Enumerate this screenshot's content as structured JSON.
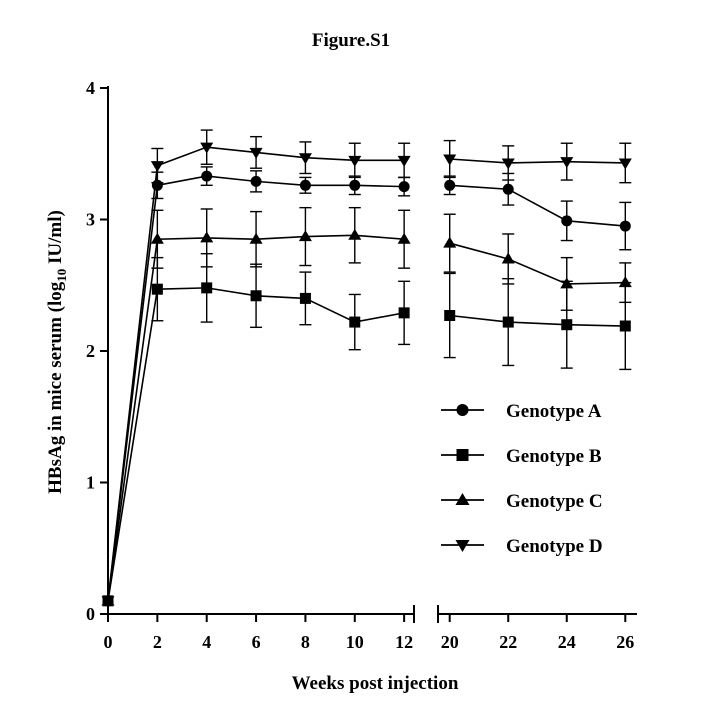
{
  "chart_data": {
    "type": "line",
    "title": "Figure.S1",
    "xlabel": "Weeks post injection",
    "ylabel": "HBsAg in mice serum (log10 IU/ml)",
    "ylabel_parts": {
      "main": "HBsAg in mice serum (log",
      "sub": "10",
      "end": " IU/ml)"
    },
    "ylim": [
      0,
      4
    ],
    "y_ticks": [
      0,
      1,
      2,
      3,
      4
    ],
    "x_segments": [
      {
        "range": [
          0,
          12.4
        ],
        "ticks": [
          0,
          2,
          4,
          6,
          8,
          10,
          12
        ]
      },
      {
        "range": [
          19.6,
          26.4
        ],
        "ticks": [
          20,
          22,
          24,
          26
        ]
      }
    ],
    "x_break": true,
    "legend_position": "right-middle",
    "grid": false,
    "series": [
      {
        "name": "Genotype A",
        "marker": "circle",
        "points": [
          {
            "x": 0,
            "y": 0.1,
            "err": 0
          },
          {
            "x": 2,
            "y": 3.26,
            "err": 0.1
          },
          {
            "x": 4,
            "y": 3.33,
            "err": 0.07
          },
          {
            "x": 6,
            "y": 3.29,
            "err": 0.08
          },
          {
            "x": 8,
            "y": 3.26,
            "err": 0.06
          },
          {
            "x": 10,
            "y": 3.26,
            "err": 0.07
          },
          {
            "x": 12,
            "y": 3.25,
            "err": 0.07
          },
          {
            "x": 20,
            "y": 3.26,
            "err": 0.07
          },
          {
            "x": 22,
            "y": 3.23,
            "err": 0.12
          },
          {
            "x": 24,
            "y": 2.99,
            "err": 0.15
          },
          {
            "x": 26,
            "y": 2.95,
            "err": 0.18
          }
        ]
      },
      {
        "name": "Genotype B",
        "marker": "square",
        "points": [
          {
            "x": 0,
            "y": 0.1,
            "err": 0
          },
          {
            "x": 2,
            "y": 2.47,
            "err": 0.24
          },
          {
            "x": 4,
            "y": 2.48,
            "err": 0.26
          },
          {
            "x": 6,
            "y": 2.42,
            "err": 0.24
          },
          {
            "x": 8,
            "y": 2.4,
            "err": 0.2
          },
          {
            "x": 10,
            "y": 2.22,
            "err": 0.21
          },
          {
            "x": 12,
            "y": 2.29,
            "err": 0.24
          },
          {
            "x": 20,
            "y": 2.27,
            "err": 0.32
          },
          {
            "x": 22,
            "y": 2.22,
            "err": 0.33
          },
          {
            "x": 24,
            "y": 2.2,
            "err": 0.33
          },
          {
            "x": 26,
            "y": 2.19,
            "err": 0.33
          }
        ]
      },
      {
        "name": "Genotype C",
        "marker": "triangle-up",
        "points": [
          {
            "x": 0,
            "y": 0.1,
            "err": 0
          },
          {
            "x": 2,
            "y": 2.85,
            "err": 0.22
          },
          {
            "x": 4,
            "y": 2.86,
            "err": 0.22
          },
          {
            "x": 6,
            "y": 2.85,
            "err": 0.21
          },
          {
            "x": 8,
            "y": 2.87,
            "err": 0.22
          },
          {
            "x": 10,
            "y": 2.88,
            "err": 0.21
          },
          {
            "x": 12,
            "y": 2.85,
            "err": 0.22
          },
          {
            "x": 20,
            "y": 2.82,
            "err": 0.22
          },
          {
            "x": 22,
            "y": 2.7,
            "err": 0.19
          },
          {
            "x": 24,
            "y": 2.51,
            "err": 0.2
          },
          {
            "x": 26,
            "y": 2.52,
            "err": 0.15
          }
        ]
      },
      {
        "name": "Genotype D",
        "marker": "triangle-down",
        "points": [
          {
            "x": 0,
            "y": 0.1,
            "err": 0
          },
          {
            "x": 2,
            "y": 3.41,
            "err": 0.13
          },
          {
            "x": 4,
            "y": 3.55,
            "err": 0.13
          },
          {
            "x": 6,
            "y": 3.51,
            "err": 0.12
          },
          {
            "x": 8,
            "y": 3.47,
            "err": 0.12
          },
          {
            "x": 10,
            "y": 3.45,
            "err": 0.13
          },
          {
            "x": 12,
            "y": 3.45,
            "err": 0.13
          },
          {
            "x": 20,
            "y": 3.46,
            "err": 0.14
          },
          {
            "x": 22,
            "y": 3.43,
            "err": 0.13
          },
          {
            "x": 24,
            "y": 3.44,
            "err": 0.14
          },
          {
            "x": 26,
            "y": 3.43,
            "err": 0.15
          }
        ]
      }
    ]
  }
}
